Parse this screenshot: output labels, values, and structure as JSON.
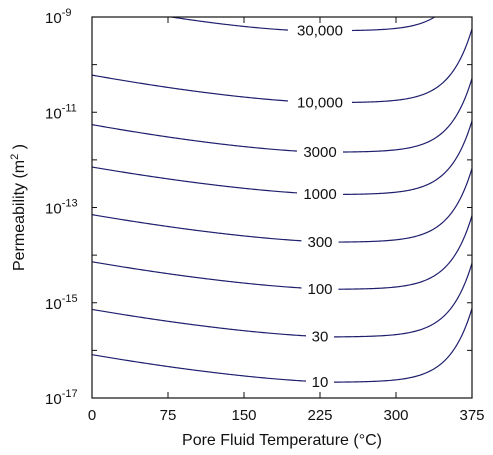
{
  "chart_data": {
    "type": "contour",
    "xlabel": "Pore Fluid Temperature (°C)",
    "ylabel": "Permeability (m²)",
    "ylabel_base": "Permeability (m",
    "ylabel_sup": "2",
    "ylabel_close": " )",
    "xlim": [
      0,
      375
    ],
    "ylim": [
      1e-17,
      1e-09
    ],
    "yscale": "log",
    "grid": false,
    "x_ticks": [
      0,
      75,
      150,
      225,
      300,
      375
    ],
    "x_tick_labels": [
      "0",
      "75",
      "150",
      "225",
      "300",
      "375"
    ],
    "y_ticks": [
      {
        "base": "10",
        "exp": "-9",
        "value": 1e-09
      },
      {
        "base": "10",
        "exp": "-11",
        "value": 1e-11
      },
      {
        "base": "10",
        "exp": "-13",
        "value": 1e-13
      },
      {
        "base": "10",
        "exp": "-15",
        "value": 1e-15
      },
      {
        "base": "10",
        "exp": "-17",
        "value": 1e-17
      }
    ],
    "line_color": "#1f1f6e",
    "contour_label_x": 225,
    "contours": [
      {
        "label": "30,000",
        "log_k_min": -9.29,
        "min_temperature": 212
      },
      {
        "label": "10,000",
        "log_k_min": -10.8,
        "min_temperature": 230
      },
      {
        "label": "3000",
        "log_k_min": -11.84,
        "min_temperature": 230
      },
      {
        "label": "1000",
        "log_k_min": -12.73,
        "min_temperature": 240
      },
      {
        "label": "300",
        "log_k_min": -13.73,
        "min_temperature": 240
      },
      {
        "label": "100",
        "log_k_min": -14.72,
        "min_temperature": 240
      },
      {
        "label": "30",
        "log_k_min": -15.72,
        "min_temperature": 240
      },
      {
        "label": "10",
        "log_k_min": -16.67,
        "min_temperature": 240
      }
    ]
  }
}
